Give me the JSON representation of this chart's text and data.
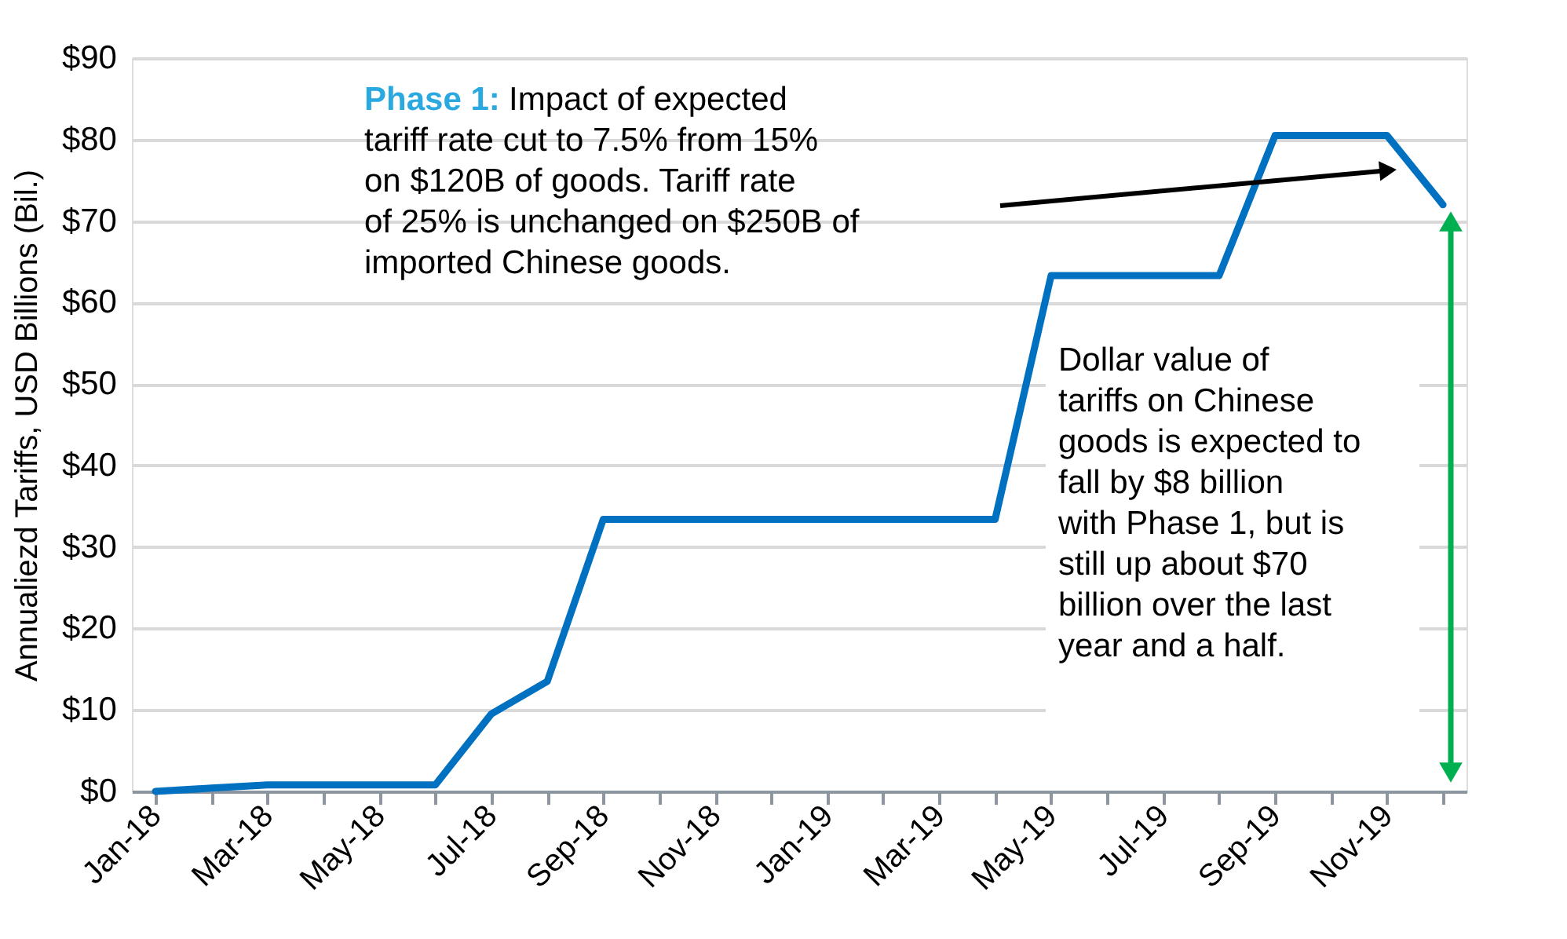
{
  "chart_data": {
    "type": "line",
    "ylabel": "Annualiezd Tariffs, USD Billions (Bil.)",
    "categories": [
      "Jan-18",
      null,
      "Mar-18",
      null,
      "May-18",
      null,
      "Jul-18",
      null,
      "Sep-18",
      null,
      "Nov-18",
      null,
      "Jan-19",
      null,
      "Mar-19",
      null,
      "May-19",
      null,
      "Jul-19",
      null,
      "Sep-19",
      null,
      "Nov-19",
      null
    ],
    "series": [
      {
        "color": "#0070c0",
        "values": [
          0,
          0.4,
          0.8,
          0.8,
          0.8,
          0.8,
          9.5,
          13.5,
          33.4,
          33.4,
          33.4,
          33.4,
          33.4,
          33.4,
          33.4,
          33.4,
          63.3,
          63.3,
          63.3,
          63.3,
          80.5,
          80.5,
          80.5,
          72
        ]
      }
    ],
    "ylim": [
      0,
      90
    ],
    "yticks": [
      {
        "value": 0,
        "label": "$0"
      },
      {
        "value": 10,
        "label": "$10"
      },
      {
        "value": 20,
        "label": "$20"
      },
      {
        "value": 30,
        "label": "$30"
      },
      {
        "value": 40,
        "label": "$40"
      },
      {
        "value": 50,
        "label": "$50"
      },
      {
        "value": 60,
        "label": "$60"
      },
      {
        "value": 70,
        "label": "$70"
      },
      {
        "value": 80,
        "label": "$80"
      },
      {
        "value": 90,
        "label": "$90"
      }
    ],
    "grid": "y",
    "legend": false,
    "marker": "none",
    "line_style": "solid",
    "annotations": [
      "Phase 1:",
      "Impact of expected tariff rate cut to 7.5% from 15% on $120B  of goods. Tariff rate of 25% is unchanged on $250B of imported Chinese goods.",
      "Dollar value of tariffs on Chinese goods is expected to fall by $8 billion with Phase 1, but is still up about $70 billion over the last year and a half."
    ]
  }
}
